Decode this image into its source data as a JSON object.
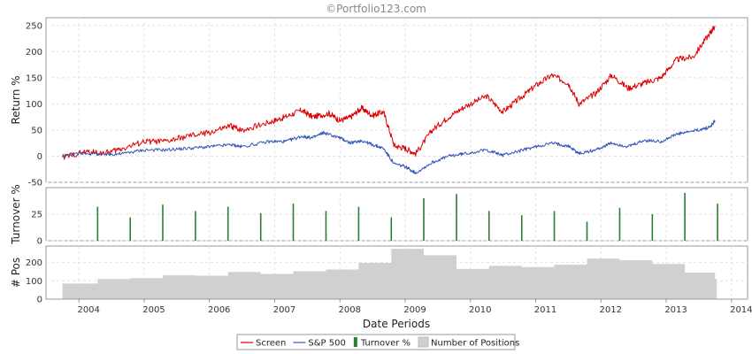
{
  "watermark": "©Portfolio123.com",
  "chart_data": {
    "type": "line",
    "x_axis": {
      "label": "Date Periods",
      "tick_labels": [
        "2004",
        "2005",
        "2006",
        "2007",
        "2008",
        "2009",
        "2010",
        "2011",
        "2012",
        "2013",
        "2014"
      ],
      "range": [
        "2003-07-01",
        "2014-04-01"
      ]
    },
    "panels": [
      {
        "name": "returns",
        "ylabel": "Return %",
        "ylim": [
          -50,
          265
        ],
        "yticks": [
          -50,
          0,
          50,
          100,
          150,
          200,
          250
        ],
        "grid": true,
        "series": [
          {
            "name": "Screen",
            "color": "#dd0000",
            "points": [
              [
                "2003-10-01",
                -2
              ],
              [
                "2004-02-01",
                8
              ],
              [
                "2004-06-01",
                6
              ],
              [
                "2004-09-01",
                15
              ],
              [
                "2005-01-01",
                28
              ],
              [
                "2005-05-01",
                28
              ],
              [
                "2005-09-01",
                38
              ],
              [
                "2006-01-01",
                45
              ],
              [
                "2006-05-01",
                58
              ],
              [
                "2006-07-01",
                50
              ],
              [
                "2006-12-01",
                65
              ],
              [
                "2007-03-01",
                75
              ],
              [
                "2007-06-01",
                88
              ],
              [
                "2007-08-01",
                75
              ],
              [
                "2007-11-01",
                82
              ],
              [
                "2008-01-01",
                68
              ],
              [
                "2008-03-01",
                75
              ],
              [
                "2008-05-01",
                92
              ],
              [
                "2008-07-01",
                78
              ],
              [
                "2008-09-01",
                85
              ],
              [
                "2008-11-01",
                20
              ],
              [
                "2009-01-01",
                15
              ],
              [
                "2009-03-01",
                5
              ],
              [
                "2009-06-01",
                50
              ],
              [
                "2009-09-01",
                75
              ],
              [
                "2009-12-01",
                95
              ],
              [
                "2010-04-01",
                115
              ],
              [
                "2010-07-01",
                85
              ],
              [
                "2010-10-01",
                110
              ],
              [
                "2011-01-01",
                135
              ],
              [
                "2011-04-01",
                155
              ],
              [
                "2011-07-01",
                140
              ],
              [
                "2011-09-01",
                100
              ],
              [
                "2011-12-01",
                120
              ],
              [
                "2012-03-01",
                155
              ],
              [
                "2012-06-01",
                130
              ],
              [
                "2012-09-01",
                140
              ],
              [
                "2012-12-01",
                150
              ],
              [
                "2013-03-01",
                185
              ],
              [
                "2013-06-01",
                190
              ],
              [
                "2013-09-01",
                235
              ],
              [
                "2013-10-01",
                248
              ]
            ]
          },
          {
            "name": "S&P 500",
            "color": "#3355bb",
            "points": [
              [
                "2003-10-01",
                0
              ],
              [
                "2004-02-01",
                6
              ],
              [
                "2004-06-01",
                3
              ],
              [
                "2004-09-01",
                5
              ],
              [
                "2005-01-01",
                12
              ],
              [
                "2005-05-01",
                12
              ],
              [
                "2005-09-01",
                15
              ],
              [
                "2006-01-01",
                18
              ],
              [
                "2006-05-01",
                22
              ],
              [
                "2006-07-01",
                18
              ],
              [
                "2006-12-01",
                28
              ],
              [
                "2007-03-01",
                28
              ],
              [
                "2007-06-01",
                38
              ],
              [
                "2007-08-01",
                35
              ],
              [
                "2007-10-01",
                45
              ],
              [
                "2008-01-01",
                35
              ],
              [
                "2008-03-01",
                25
              ],
              [
                "2008-05-01",
                30
              ],
              [
                "2008-07-01",
                22
              ],
              [
                "2008-09-01",
                15
              ],
              [
                "2008-11-01",
                -15
              ],
              [
                "2009-01-01",
                -20
              ],
              [
                "2009-03-01",
                -32
              ],
              [
                "2009-06-01",
                -12
              ],
              [
                "2009-09-01",
                0
              ],
              [
                "2009-12-01",
                5
              ],
              [
                "2010-04-01",
                12
              ],
              [
                "2010-07-01",
                2
              ],
              [
                "2010-10-01",
                10
              ],
              [
                "2011-01-01",
                18
              ],
              [
                "2011-04-01",
                25
              ],
              [
                "2011-07-01",
                20
              ],
              [
                "2011-09-01",
                5
              ],
              [
                "2011-12-01",
                12
              ],
              [
                "2012-03-01",
                25
              ],
              [
                "2012-06-01",
                18
              ],
              [
                "2012-09-01",
                30
              ],
              [
                "2012-12-01",
                28
              ],
              [
                "2013-03-01",
                42
              ],
              [
                "2013-06-01",
                48
              ],
              [
                "2013-09-01",
                55
              ],
              [
                "2013-10-01",
                68
              ]
            ]
          }
        ]
      },
      {
        "name": "turnover",
        "ylabel": "Turnover %",
        "ylim": [
          0,
          50
        ],
        "yticks": [
          0,
          25
        ],
        "grid": true,
        "series": [
          {
            "name": "Turnover %",
            "type": "bar",
            "color": "#2e7d32",
            "points": [
              [
                "2004-04-15",
                32
              ],
              [
                "2004-10-15",
                22
              ],
              [
                "2005-04-15",
                34
              ],
              [
                "2005-10-15",
                28
              ],
              [
                "2006-04-15",
                32
              ],
              [
                "2006-10-15",
                26
              ],
              [
                "2007-04-15",
                35
              ],
              [
                "2007-10-15",
                28
              ],
              [
                "2008-04-15",
                32
              ],
              [
                "2008-10-15",
                22
              ],
              [
                "2009-04-15",
                40
              ],
              [
                "2009-10-15",
                44
              ],
              [
                "2010-04-15",
                28
              ],
              [
                "2010-10-15",
                24
              ],
              [
                "2011-04-15",
                28
              ],
              [
                "2011-10-15",
                18
              ],
              [
                "2012-04-15",
                31
              ],
              [
                "2012-10-15",
                25
              ],
              [
                "2013-04-15",
                45
              ],
              [
                "2013-10-15",
                35
              ]
            ]
          }
        ]
      },
      {
        "name": "positions",
        "ylabel": "# Pos",
        "ylim": [
          0,
          290
        ],
        "yticks": [
          0,
          100,
          200
        ],
        "grid": true,
        "series": [
          {
            "name": "Number of Positions",
            "type": "step_area",
            "color": "#d0d0d0",
            "points": [
              [
                "2003-10-01",
                85
              ],
              [
                "2004-04-15",
                110
              ],
              [
                "2004-10-15",
                115
              ],
              [
                "2005-04-15",
                130
              ],
              [
                "2005-10-15",
                128
              ],
              [
                "2006-04-15",
                148
              ],
              [
                "2006-10-15",
                138
              ],
              [
                "2007-04-15",
                152
              ],
              [
                "2007-10-15",
                162
              ],
              [
                "2008-04-15",
                198
              ],
              [
                "2008-10-15",
                275
              ],
              [
                "2009-04-15",
                240
              ],
              [
                "2009-10-15",
                165
              ],
              [
                "2010-04-15",
                182
              ],
              [
                "2010-10-15",
                175
              ],
              [
                "2011-04-15",
                188
              ],
              [
                "2011-10-15",
                222
              ],
              [
                "2012-04-15",
                212
              ],
              [
                "2012-10-15",
                192
              ],
              [
                "2013-04-15",
                145
              ],
              [
                "2013-10-01",
                110
              ]
            ]
          }
        ]
      }
    ],
    "legend": {
      "position": "bottom-center",
      "entries": [
        {
          "label": "Screen",
          "kind": "line",
          "color": "#dd0000"
        },
        {
          "label": "S&P 500",
          "kind": "line",
          "color": "#3355bb"
        },
        {
          "label": "Turnover %",
          "kind": "bar",
          "color": "#2e7d32"
        },
        {
          "label": "Number of Positions",
          "kind": "box",
          "color": "#d0d0d0"
        }
      ]
    }
  }
}
